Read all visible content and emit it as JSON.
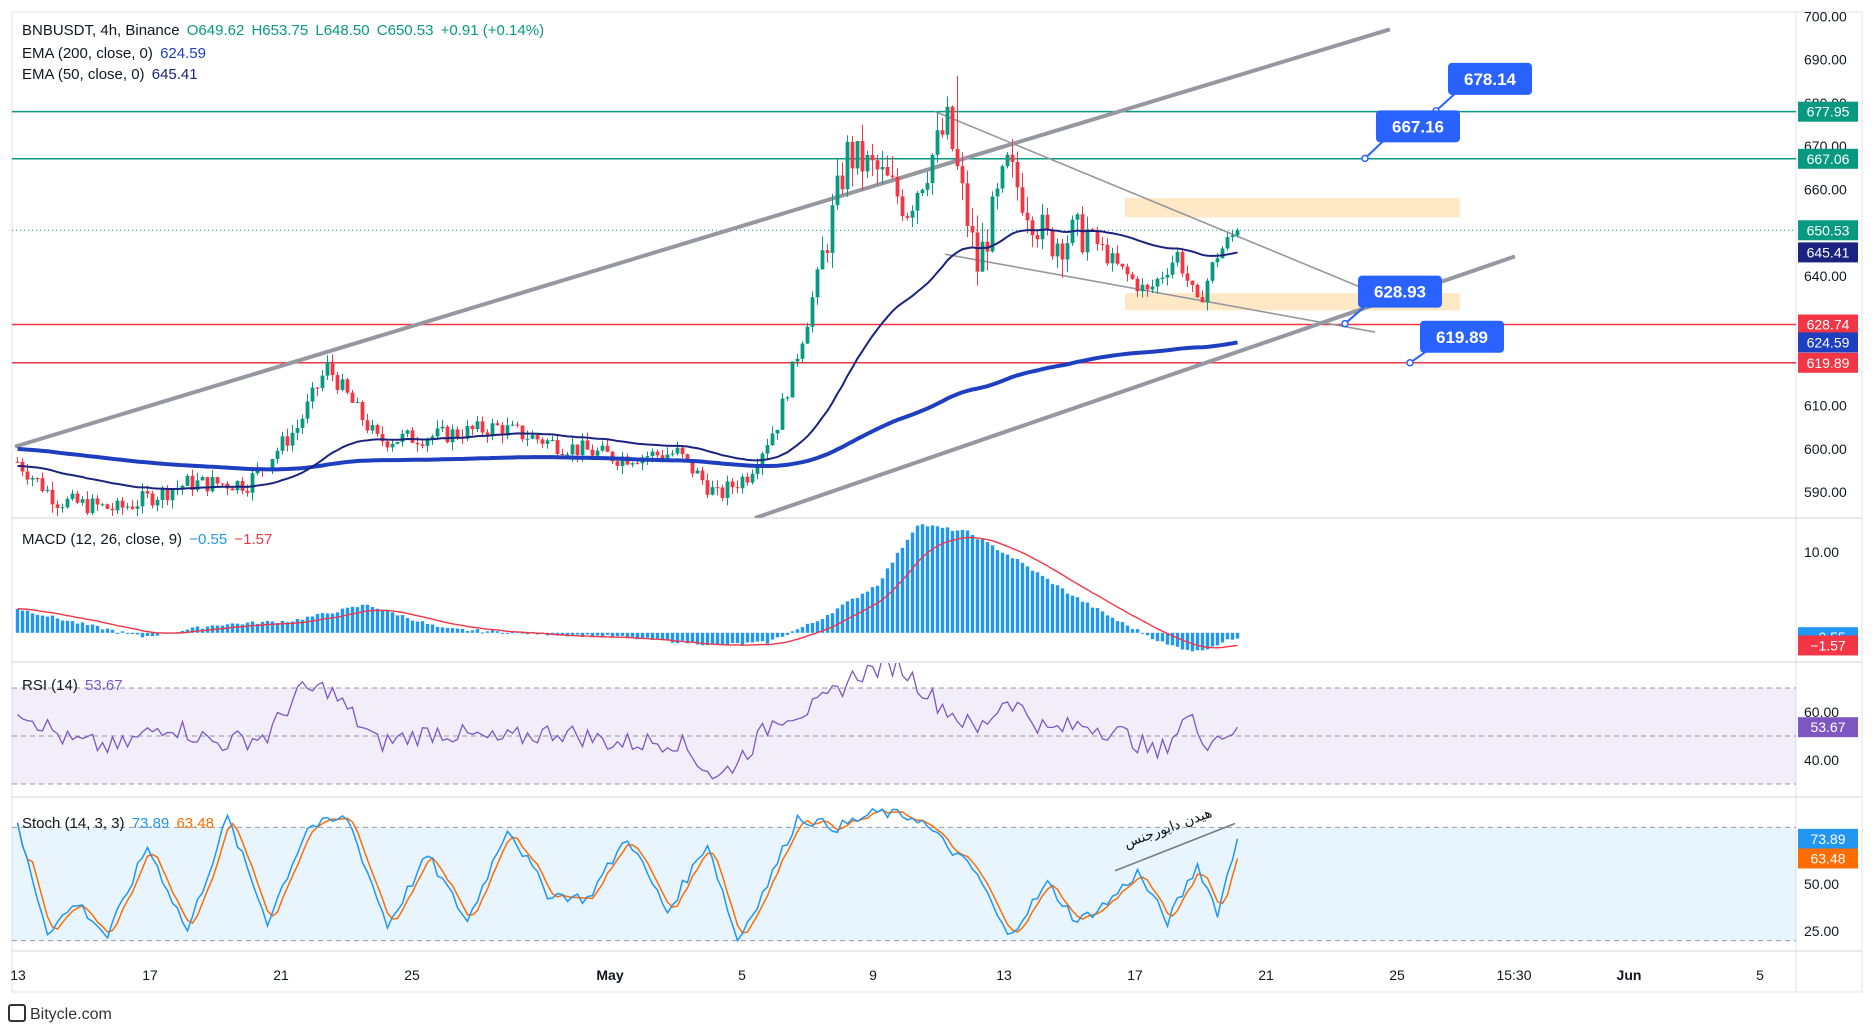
{
  "symbol_line": {
    "symbol": "BNBUSDT, 4h, Binance",
    "open": "O649.62",
    "high": "H653.75",
    "low": "L648.50",
    "close": "C650.53",
    "change": "+0.91 (+0.14%)"
  },
  "ema200": {
    "label": "EMA (200, close, 0)",
    "value": "624.59"
  },
  "ema50": {
    "label": "EMA (50, close, 0)",
    "value": "645.41"
  },
  "macd_legend": {
    "label": "MACD (12, 26, close, 9)",
    "macd": "−0.55",
    "signal": "−1.57"
  },
  "rsi_legend": {
    "label": "RSI (14)",
    "value": "53.67"
  },
  "stoch_legend": {
    "label": "Stoch (14, 3, 3)",
    "k": "73.89",
    "d": "63.48"
  },
  "annotation_text": "هیدن دایورجنس",
  "footer": "Bitycle.com",
  "colors": {
    "up": "#089981",
    "down": "#f23645",
    "ema200": "#1e3fbf",
    "ema50": "#1a237e",
    "macd_hist": "#2196f3",
    "signal": "#f23645",
    "rsi": "#7e57c2",
    "stoch_k": "#2196f3",
    "stoch_d": "#ff6d00",
    "callout": "#2962ff",
    "zone": "#ffe0b2",
    "support_line": "#f23645",
    "resistance_line": "#089981",
    "channel": "#9598a1"
  },
  "chart_data": [
    {
      "type": "candlestick",
      "panel": "price",
      "symbol": "BNBUSDT",
      "timeframe": "4h",
      "exchange": "Binance",
      "y_axis_ticks": [
        590,
        600,
        610,
        640,
        650,
        660,
        670,
        680,
        690,
        700
      ],
      "y_axis_tick_labels": [
        "590.00",
        "600.00",
        "610.00",
        "640.00",
        "650.00",
        "660.00",
        "670.00",
        "680.00",
        "690.00",
        "700.00"
      ],
      "ylim": [
        584,
        701
      ],
      "x_axis_labels": [
        "13",
        "17",
        "21",
        "25",
        "May",
        "5",
        "9",
        "13",
        "17",
        "21",
        "25",
        "15:30",
        "Jun",
        "5"
      ],
      "last_close": 650.53,
      "approx_close_path": [
        {
          "bar": 0,
          "close": 597
        },
        {
          "bar": 8,
          "close": 588
        },
        {
          "bar": 20,
          "close": 586
        },
        {
          "bar": 34,
          "close": 592
        },
        {
          "bar": 46,
          "close": 592
        },
        {
          "bar": 56,
          "close": 605
        },
        {
          "bar": 62,
          "close": 619
        },
        {
          "bar": 72,
          "close": 602
        },
        {
          "bar": 84,
          "close": 603
        },
        {
          "bar": 96,
          "close": 605
        },
        {
          "bar": 108,
          "close": 601
        },
        {
          "bar": 120,
          "close": 598
        },
        {
          "bar": 132,
          "close": 599
        },
        {
          "bar": 140,
          "close": 589
        },
        {
          "bar": 146,
          "close": 594
        },
        {
          "bar": 152,
          "close": 606
        },
        {
          "bar": 158,
          "close": 630
        },
        {
          "bar": 166,
          "close": 668
        },
        {
          "bar": 172,
          "close": 664
        },
        {
          "bar": 178,
          "close": 656
        },
        {
          "bar": 186,
          "close": 675
        },
        {
          "bar": 192,
          "close": 642
        },
        {
          "bar": 198,
          "close": 665
        },
        {
          "bar": 206,
          "close": 648
        },
        {
          "bar": 214,
          "close": 650
        },
        {
          "bar": 220,
          "close": 642
        },
        {
          "bar": 226,
          "close": 636
        },
        {
          "bar": 232,
          "close": 645
        },
        {
          "bar": 236,
          "close": 633
        },
        {
          "bar": 240,
          "close": 645
        },
        {
          "bar": 244,
          "close": 650.53
        }
      ],
      "ema200_last": 624.59,
      "ema50_last": 645.41,
      "horizontal_levels": [
        {
          "label": "677.95",
          "value": 677.95,
          "color": "#089981"
        },
        {
          "label": "667.06",
          "value": 667.06,
          "color": "#089981"
        },
        {
          "label": "628.74",
          "value": 628.74,
          "color": "#f23645"
        },
        {
          "label": "619.89",
          "value": 619.89,
          "color": "#f23645"
        }
      ],
      "price_tags": [
        {
          "label": "650.53",
          "value": 650.53,
          "color": "#089981"
        },
        {
          "label": "645.41",
          "value": 645.41,
          "color": "#1a237e"
        },
        {
          "label": "624.59",
          "value": 624.59,
          "color": "#1e3fbf"
        }
      ],
      "callouts": [
        {
          "label": "678.14",
          "value": 678.14
        },
        {
          "label": "667.16",
          "value": 667.16
        },
        {
          "label": "628.93",
          "value": 628.93
        },
        {
          "label": "619.89",
          "value": 619.89
        }
      ],
      "zones": [
        {
          "from": 653.5,
          "to": 658
        },
        {
          "from": 632,
          "to": 636
        }
      ],
      "channel": {
        "upper": [
          {
            "bar": 0,
            "price": 600.5
          },
          {
            "bar": 275,
            "price": 697
          }
        ],
        "lower": [
          {
            "bar": 148,
            "price": 584
          },
          {
            "bar": 300,
            "price": 644.5
          }
        ]
      },
      "wedge": {
        "upper": [
          {
            "bar": 184,
            "price": 678
          },
          {
            "bar": 272,
            "price": 636
          }
        ],
        "lower": [
          {
            "bar": 186,
            "price": 645
          },
          {
            "bar": 272,
            "price": 627
          }
        ]
      }
    },
    {
      "type": "bar",
      "panel": "macd",
      "name": "MACD (12, 26, close, 9)",
      "y_axis_ticks": [
        10
      ],
      "y_axis_tick_labels": [
        "10.00"
      ],
      "ylim": [
        -3.5,
        14
      ],
      "macd_last": -0.55,
      "signal_last": -1.57,
      "approx_macd_path": [
        {
          "bar": 0,
          "value": 3
        },
        {
          "bar": 10,
          "value": 1.5
        },
        {
          "bar": 25,
          "value": -0.5
        },
        {
          "bar": 40,
          "value": 1
        },
        {
          "bar": 55,
          "value": 1.5
        },
        {
          "bar": 70,
          "value": 3.5
        },
        {
          "bar": 85,
          "value": 0.5
        },
        {
          "bar": 100,
          "value": 0
        },
        {
          "bar": 120,
          "value": -0.5
        },
        {
          "bar": 140,
          "value": -1.5
        },
        {
          "bar": 150,
          "value": -1.2
        },
        {
          "bar": 160,
          "value": 1.5
        },
        {
          "bar": 172,
          "value": 6
        },
        {
          "bar": 180,
          "value": 13.5
        },
        {
          "bar": 190,
          "value": 12.5
        },
        {
          "bar": 200,
          "value": 9
        },
        {
          "bar": 210,
          "value": 5
        },
        {
          "bar": 220,
          "value": 1.5
        },
        {
          "bar": 230,
          "value": -1.5
        },
        {
          "bar": 236,
          "value": -2.3
        },
        {
          "bar": 244,
          "value": -0.55
        }
      ]
    },
    {
      "type": "line",
      "panel": "rsi",
      "name": "RSI (14)",
      "y_axis_ticks": [
        40,
        60
      ],
      "y_axis_tick_labels": [
        "40.00",
        "60.00"
      ],
      "ylim": [
        25,
        80
      ],
      "band": [
        30,
        70
      ],
      "last": 53.67,
      "approx_path": [
        {
          "bar": 0,
          "value": 62
        },
        {
          "bar": 10,
          "value": 48
        },
        {
          "bar": 20,
          "value": 45
        },
        {
          "bar": 30,
          "value": 55
        },
        {
          "bar": 40,
          "value": 47
        },
        {
          "bar": 50,
          "value": 50
        },
        {
          "bar": 56,
          "value": 68
        },
        {
          "bar": 62,
          "value": 70
        },
        {
          "bar": 72,
          "value": 47
        },
        {
          "bar": 84,
          "value": 52
        },
        {
          "bar": 96,
          "value": 48
        },
        {
          "bar": 108,
          "value": 52
        },
        {
          "bar": 120,
          "value": 47
        },
        {
          "bar": 132,
          "value": 48
        },
        {
          "bar": 140,
          "value": 32
        },
        {
          "bar": 146,
          "value": 44
        },
        {
          "bar": 152,
          "value": 58
        },
        {
          "bar": 160,
          "value": 62
        },
        {
          "bar": 168,
          "value": 76
        },
        {
          "bar": 176,
          "value": 80
        },
        {
          "bar": 184,
          "value": 64
        },
        {
          "bar": 192,
          "value": 52
        },
        {
          "bar": 198,
          "value": 66
        },
        {
          "bar": 206,
          "value": 52
        },
        {
          "bar": 214,
          "value": 55
        },
        {
          "bar": 222,
          "value": 50
        },
        {
          "bar": 228,
          "value": 42
        },
        {
          "bar": 234,
          "value": 58
        },
        {
          "bar": 238,
          "value": 48
        },
        {
          "bar": 244,
          "value": 53.67
        }
      ]
    },
    {
      "type": "line",
      "panel": "stoch",
      "name": "Stoch (14, 3, 3)",
      "y_axis_ticks": [
        25,
        50
      ],
      "y_axis_tick_labels": [
        "25.00",
        "50.00"
      ],
      "ylim": [
        15,
        95
      ],
      "band": [
        20,
        80
      ],
      "series": [
        {
          "name": "%K",
          "last": 73.89
        },
        {
          "name": "%D",
          "last": 63.48
        }
      ],
      "approx_k_path": [
        {
          "bar": 0,
          "value": 80
        },
        {
          "bar": 6,
          "value": 25
        },
        {
          "bar": 12,
          "value": 40
        },
        {
          "bar": 18,
          "value": 22
        },
        {
          "bar": 26,
          "value": 70
        },
        {
          "bar": 34,
          "value": 25
        },
        {
          "bar": 42,
          "value": 85
        },
        {
          "bar": 50,
          "value": 30
        },
        {
          "bar": 58,
          "value": 80
        },
        {
          "bar": 66,
          "value": 85
        },
        {
          "bar": 74,
          "value": 28
        },
        {
          "bar": 82,
          "value": 65
        },
        {
          "bar": 90,
          "value": 30
        },
        {
          "bar": 98,
          "value": 80
        },
        {
          "bar": 106,
          "value": 45
        },
        {
          "bar": 114,
          "value": 42
        },
        {
          "bar": 122,
          "value": 75
        },
        {
          "bar": 130,
          "value": 35
        },
        {
          "bar": 138,
          "value": 72
        },
        {
          "bar": 144,
          "value": 20
        },
        {
          "bar": 150,
          "value": 50
        },
        {
          "bar": 156,
          "value": 85
        },
        {
          "bar": 164,
          "value": 80
        },
        {
          "bar": 172,
          "value": 88
        },
        {
          "bar": 180,
          "value": 85
        },
        {
          "bar": 186,
          "value": 70
        },
        {
          "bar": 192,
          "value": 55
        },
        {
          "bar": 198,
          "value": 22
        },
        {
          "bar": 206,
          "value": 50
        },
        {
          "bar": 212,
          "value": 30
        },
        {
          "bar": 218,
          "value": 40
        },
        {
          "bar": 224,
          "value": 56
        },
        {
          "bar": 230,
          "value": 30
        },
        {
          "bar": 236,
          "value": 60
        },
        {
          "bar": 240,
          "value": 35
        },
        {
          "bar": 244,
          "value": 73.89
        }
      ]
    }
  ]
}
